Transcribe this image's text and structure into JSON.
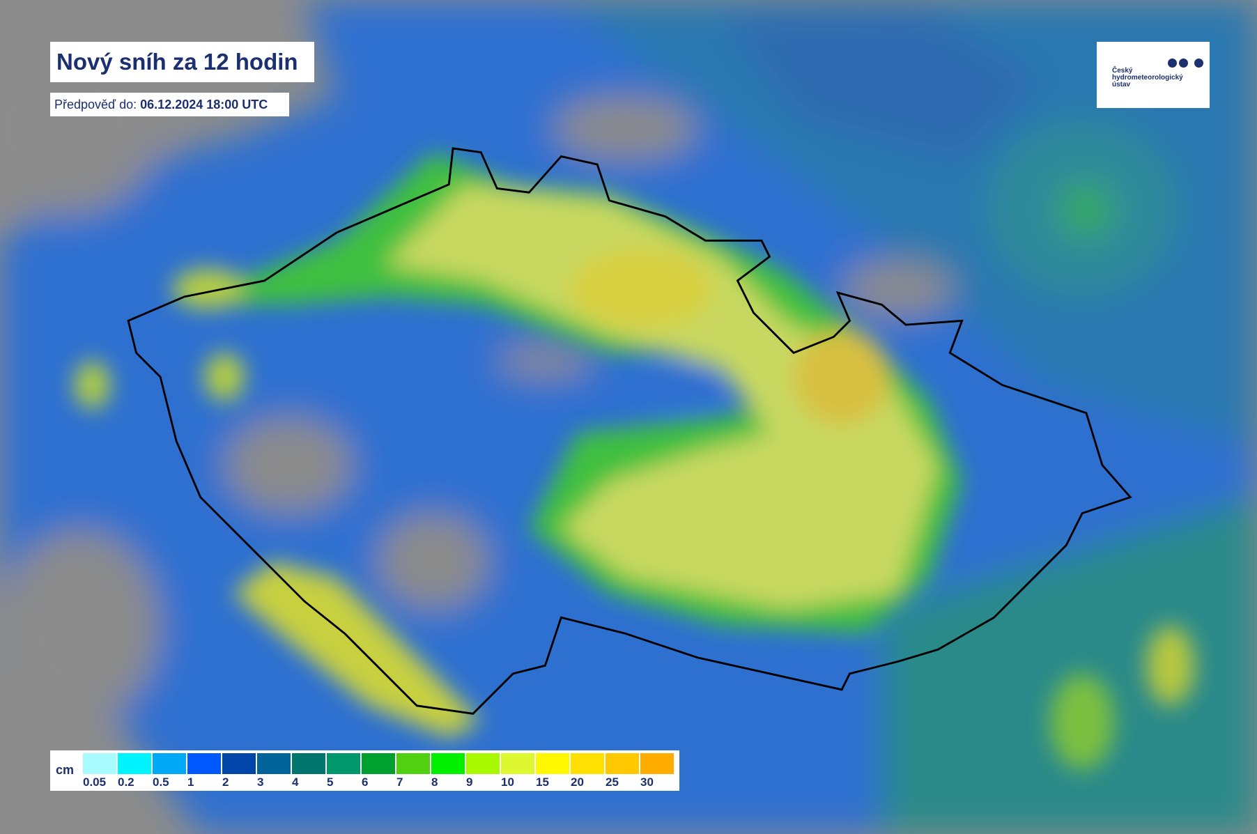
{
  "title": "Nový sníh za 12 hodin",
  "subtitle": {
    "label": "Předpověď do:",
    "value": "06.12.2024 18:00 UTC"
  },
  "logo": {
    "text": "Český hydrometeorologický ústav"
  },
  "legend": {
    "unit": "cm",
    "items": [
      {
        "label": "0.05",
        "color": "#a8fbff"
      },
      {
        "label": "0.2",
        "color": "#00f4ff"
      },
      {
        "label": "0.5",
        "color": "#00a8f8"
      },
      {
        "label": "1",
        "color": "#0058ff"
      },
      {
        "label": "2",
        "color": "#0045a8"
      },
      {
        "label": "3",
        "color": "#00649a"
      },
      {
        "label": "4",
        "color": "#00766f"
      },
      {
        "label": "5",
        "color": "#00986a"
      },
      {
        "label": "6",
        "color": "#00a030"
      },
      {
        "label": "7",
        "color": "#50d010"
      },
      {
        "label": "8",
        "color": "#00f000"
      },
      {
        "label": "9",
        "color": "#a8f800"
      },
      {
        "label": "10",
        "color": "#ddf830"
      },
      {
        "label": "15",
        "color": "#fff800"
      },
      {
        "label": "20",
        "color": "#ffe000"
      },
      {
        "label": "25",
        "color": "#ffc800"
      },
      {
        "label": "30",
        "color": "#ffac00"
      }
    ]
  }
}
